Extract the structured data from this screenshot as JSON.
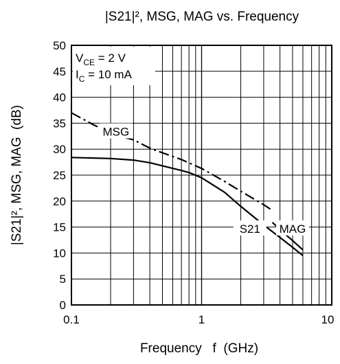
{
  "chart_data": {
    "type": "line",
    "title": "|S21|², MSG, MAG vs. Frequency",
    "xlabel": "Frequency   f  (GHz)",
    "ylabel": "|S21|², MSG, MAG  (dB)",
    "xscale": "log",
    "xlim": [
      0.1,
      10
    ],
    "ylim": [
      0,
      50
    ],
    "x_ticks": [
      0.1,
      1,
      10
    ],
    "x_tick_labels": [
      "0.1",
      "1",
      "10"
    ],
    "y_ticks": [
      0,
      5,
      10,
      15,
      20,
      25,
      30,
      35,
      40,
      45,
      50
    ],
    "grid": true,
    "conditions": [
      {
        "symbol": "V",
        "sub": "CE",
        "rest": " = 2 V"
      },
      {
        "symbol": "I",
        "sub": "C",
        "rest": " = 10 mA"
      }
    ],
    "series": [
      {
        "name": "MSG",
        "style": "dash-dot",
        "color": "#000000",
        "x": [
          0.1,
          0.15,
          0.2,
          0.25,
          0.3,
          0.4,
          0.5,
          0.7,
          1.0,
          1.5,
          2.0,
          3.0,
          3.5
        ],
        "y": [
          37,
          34.6,
          33.2,
          32.3,
          31.8,
          30.2,
          29.3,
          28,
          26.3,
          23.8,
          21.9,
          19.3,
          18.2
        ]
      },
      {
        "name": "S21",
        "style": "solid",
        "color": "#000000",
        "x": [
          0.1,
          0.2,
          0.3,
          0.4,
          0.5,
          0.6,
          0.7,
          0.8,
          1.0,
          1.5,
          2.0,
          3.0,
          4.0,
          5.0,
          6.0
        ],
        "y": [
          28.4,
          28.2,
          27.9,
          27.4,
          26.8,
          26.3,
          25.9,
          25.5,
          24.5,
          21.7,
          19.0,
          15.4,
          13.0,
          11.1,
          9.5
        ]
      },
      {
        "name": "MAG",
        "style": "solid",
        "color": "#000000",
        "x": [
          3.5,
          4.0,
          5.0,
          6.0
        ],
        "y": [
          15.9,
          14.5,
          12.4,
          10.6
        ]
      }
    ],
    "annotations": [
      {
        "text": "MSG",
        "x": 0.22,
        "y": 33.4
      },
      {
        "text": "S21",
        "x": 2.35,
        "y": 14.7
      },
      {
        "text": "MAG",
        "x": 5.0,
        "y": 14.7
      }
    ]
  }
}
